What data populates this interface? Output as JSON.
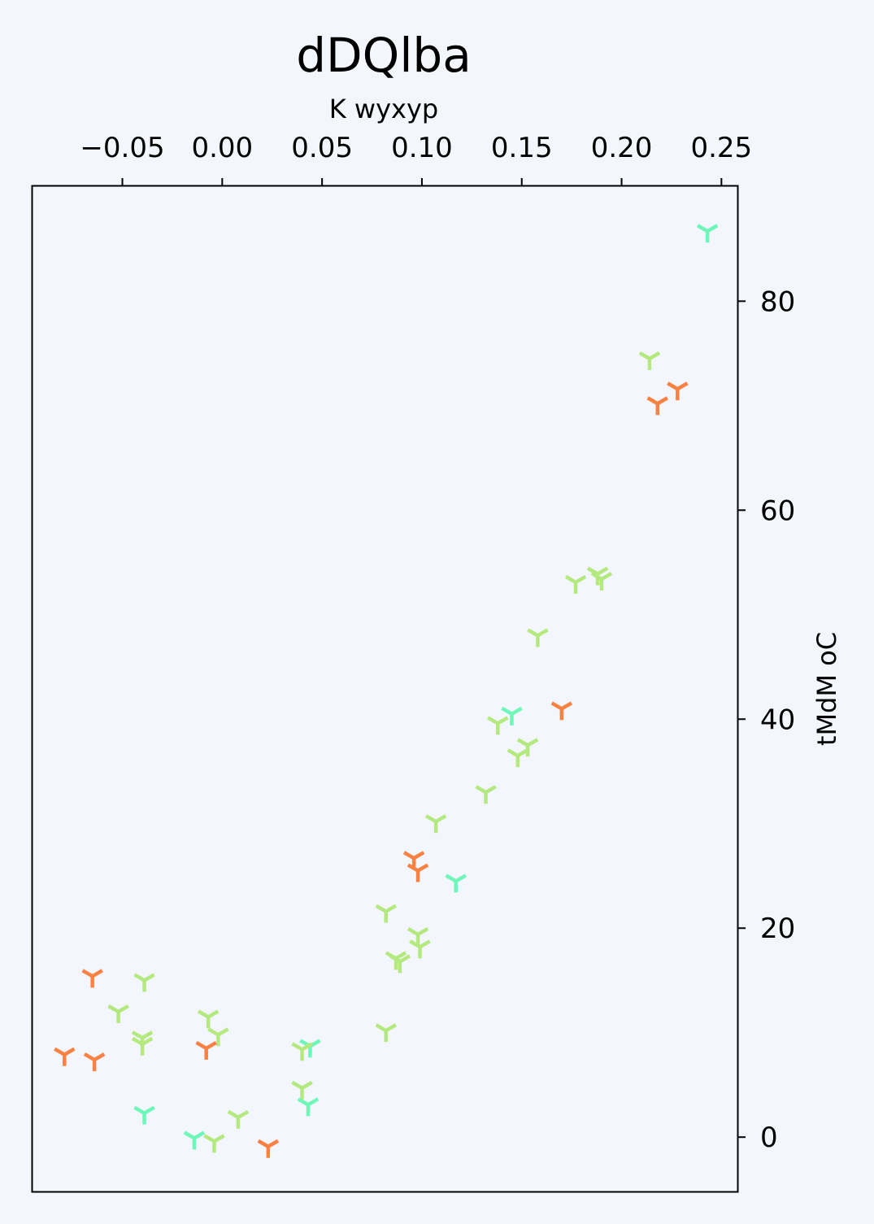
{
  "chart_data": {
    "type": "scatter",
    "title": "dDQlba",
    "xlabel": "K wyxyp",
    "ylabel": "tMdM oC",
    "x_axis_position": "top",
    "y_axis_position": "right",
    "marker": "tri-down",
    "xlim": [
      -0.095,
      0.258
    ],
    "ylim": [
      -5.2,
      91.0
    ],
    "xticks": [
      -0.05,
      0.0,
      0.05,
      0.1,
      0.15,
      0.2,
      0.25
    ],
    "xtick_labels": [
      "−0.05",
      "0.00",
      "0.05",
      "0.10",
      "0.15",
      "0.20",
      "0.25"
    ],
    "yticks": [
      0,
      20,
      40,
      60,
      80
    ],
    "ytick_labels": [
      "0",
      "20",
      "40",
      "60",
      "80"
    ],
    "grid": false,
    "series": [
      {
        "color": "#6ef7b8",
        "points": [
          [
            0.243,
            86.7
          ],
          [
            0.145,
            40.5
          ],
          [
            0.117,
            24.5
          ],
          [
            0.044,
            8.7
          ],
          [
            0.043,
            3.1
          ],
          [
            -0.039,
            2.3
          ],
          [
            -0.014,
            -0.1
          ]
        ]
      },
      {
        "color": "#b4e980",
        "points": [
          [
            0.214,
            74.5
          ],
          [
            0.188,
            53.9
          ],
          [
            0.19,
            53.4
          ],
          [
            0.177,
            53.1
          ],
          [
            0.158,
            48.0
          ],
          [
            0.138,
            39.6
          ],
          [
            0.153,
            37.5
          ],
          [
            0.148,
            36.5
          ],
          [
            0.132,
            33.0
          ],
          [
            0.107,
            30.2
          ],
          [
            0.082,
            21.6
          ],
          [
            0.098,
            19.4
          ],
          [
            0.099,
            18.2
          ],
          [
            0.087,
            17.1
          ],
          [
            0.089,
            16.8
          ],
          [
            0.082,
            10.2
          ],
          [
            0.04,
            8.4
          ],
          [
            0.04,
            4.7
          ],
          [
            -0.039,
            15.0
          ],
          [
            -0.052,
            12.0
          ],
          [
            -0.04,
            9.5
          ],
          [
            -0.04,
            8.9
          ],
          [
            -0.007,
            11.5
          ],
          [
            -0.002,
            9.8
          ],
          [
            0.008,
            1.9
          ],
          [
            -0.004,
            -0.4
          ]
        ]
      },
      {
        "color": "#f98142",
        "points": [
          [
            0.228,
            71.6
          ],
          [
            0.218,
            70.2
          ],
          [
            0.17,
            41.0
          ],
          [
            0.096,
            26.7
          ],
          [
            0.098,
            25.5
          ],
          [
            -0.065,
            15.4
          ],
          [
            -0.064,
            7.4
          ],
          [
            -0.008,
            8.5
          ],
          [
            -0.079,
            7.9
          ],
          [
            0.023,
            -0.9
          ]
        ]
      }
    ]
  }
}
